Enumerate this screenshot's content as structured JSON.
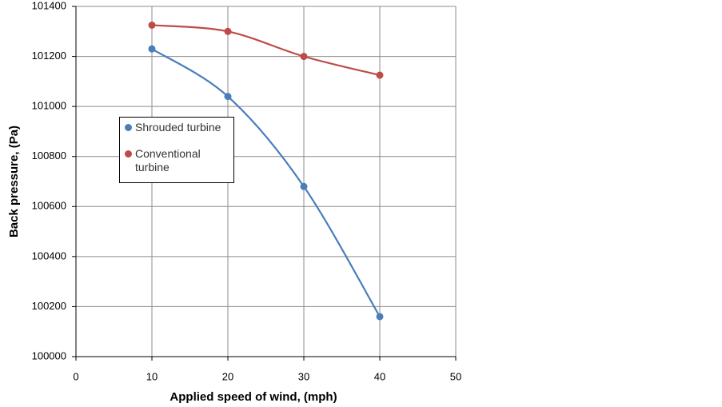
{
  "chart_data": {
    "type": "scatter",
    "x_label": "Applied speed of wind, (mph)",
    "y_label": "Back pressure, (Pa)",
    "series": [
      {
        "name": "Shrouded turbine",
        "color": "#4a7ebb",
        "x": [
          10,
          20,
          30,
          40
        ],
        "values": [
          101230,
          101040,
          100680,
          100160
        ]
      },
      {
        "name": "Conventional turbine",
        "color": "#be4b48",
        "x": [
          10,
          20,
          30,
          40
        ],
        "values": [
          101325,
          101300,
          101200,
          101125
        ]
      }
    ],
    "xlim": [
      0,
      50
    ],
    "xticks": [
      0,
      10,
      20,
      30,
      40,
      50
    ],
    "ylim": [
      100000,
      101400
    ],
    "yticks": [
      100000,
      100200,
      100400,
      100600,
      100800,
      101000,
      101200,
      101400
    ],
    "grid": true,
    "smooth": true
  }
}
